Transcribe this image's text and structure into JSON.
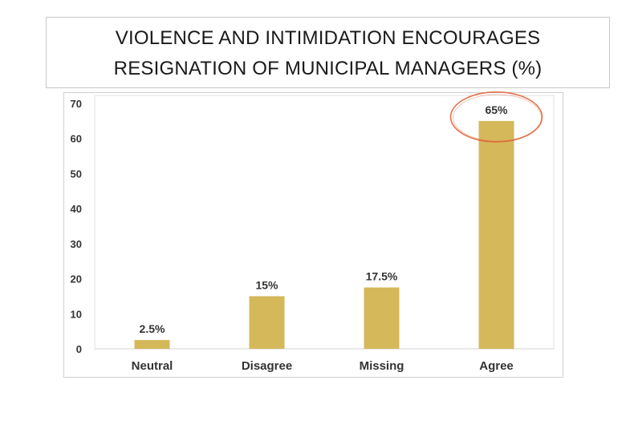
{
  "chart_data": {
    "type": "bar",
    "title_lines": [
      "VIOLENCE AND INTIMIDATION ENCOURAGES",
      "RESIGNATION OF MUNICIPAL MANAGERS (%)"
    ],
    "categories": [
      "Neutral",
      "Disagree",
      "Missing",
      "Agree"
    ],
    "values": [
      2.5,
      15,
      17.5,
      65
    ],
    "data_labels": [
      "2.5%",
      "15%",
      "17.5%",
      "65%"
    ],
    "yticks": [
      "0",
      "10",
      "20",
      "30",
      "40",
      "50",
      "60",
      "70"
    ],
    "ylim": [
      0,
      70
    ],
    "grid": false,
    "legend": "none",
    "bar_color": "#d4b85a",
    "highlight": {
      "category": "Agree",
      "shape": "ellipse",
      "color": "#e0633a"
    }
  }
}
